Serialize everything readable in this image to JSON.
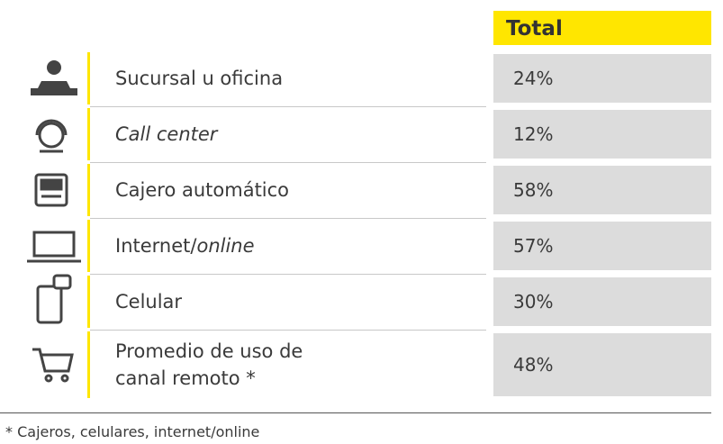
{
  "table": {
    "header": "Total",
    "rows": [
      {
        "label": [
          {
            "text": "Sucursal u oficina"
          }
        ],
        "value": "24%"
      },
      {
        "label": [
          {
            "text": "Call center",
            "italic": true
          }
        ],
        "value": "12%"
      },
      {
        "label": [
          {
            "text": "Cajero automático"
          }
        ],
        "value": "58%"
      },
      {
        "label": [
          {
            "text": "Internet/"
          },
          {
            "text": "online",
            "italic": true
          }
        ],
        "value": "57%"
      },
      {
        "label": [
          {
            "text": "Celular"
          }
        ],
        "value": "30%"
      },
      {
        "label": [
          {
            "text": "Promedio de uso de"
          },
          {
            "text": "canal remoto *",
            "newline": true
          }
        ],
        "value": "48%"
      }
    ]
  },
  "footnote": "* Cajeros, celulares, internet/online"
}
